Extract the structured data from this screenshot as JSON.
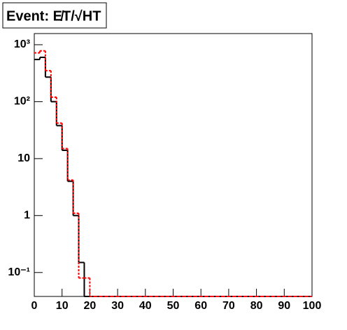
{
  "chart_data": {
    "type": "histogram",
    "title": "Event: E̸T/√HT",
    "bins": [
      0,
      2,
      4,
      6,
      8,
      10,
      12,
      14,
      16,
      18,
      20,
      22,
      24,
      26,
      28,
      30,
      32,
      34,
      36,
      38,
      40,
      42,
      44,
      46,
      48,
      50,
      52,
      54,
      56,
      58,
      60,
      62,
      64,
      66,
      68,
      70,
      72,
      74,
      76,
      78,
      80,
      82,
      84,
      86,
      88,
      90,
      92,
      94,
      96,
      98,
      100
    ],
    "series": [
      {
        "color": "#000000",
        "values": [
          550,
          600,
          270,
          100,
          38,
          14,
          4,
          1,
          0.15,
          0,
          0,
          0,
          0,
          0,
          0,
          0,
          0,
          0,
          0,
          0,
          0,
          0,
          0,
          0,
          0,
          0,
          0,
          0,
          0,
          0,
          0,
          0,
          0,
          0,
          0,
          0,
          0,
          0,
          0,
          0,
          0,
          0,
          0,
          0,
          0,
          0,
          0,
          0,
          0,
          0
        ]
      },
      {
        "color": "#ff0000",
        "values": [
          720,
          780,
          350,
          120,
          42,
          15,
          4.2,
          1.1,
          0.08,
          0.08,
          0,
          0,
          0,
          0,
          0,
          0,
          0,
          0,
          0,
          0,
          0,
          0,
          0,
          0,
          0,
          0,
          0,
          0,
          0,
          0,
          0,
          0,
          0,
          0,
          0,
          0,
          0,
          0,
          0,
          0,
          0,
          0,
          0,
          0,
          0,
          0,
          0,
          0,
          0,
          0
        ]
      }
    ],
    "xlim": [
      0,
      100
    ],
    "xticks": [
      0,
      10,
      20,
      30,
      40,
      50,
      60,
      70,
      80,
      90,
      100
    ],
    "ylim": [
      0.038,
      1570
    ],
    "log_y": true,
    "yticks": [
      {
        "value": 0.1,
        "label": "10⁻¹"
      },
      1,
      10,
      {
        "value": 100,
        "label": "10²"
      },
      {
        "value": 1000,
        "label": "10³"
      }
    ]
  }
}
